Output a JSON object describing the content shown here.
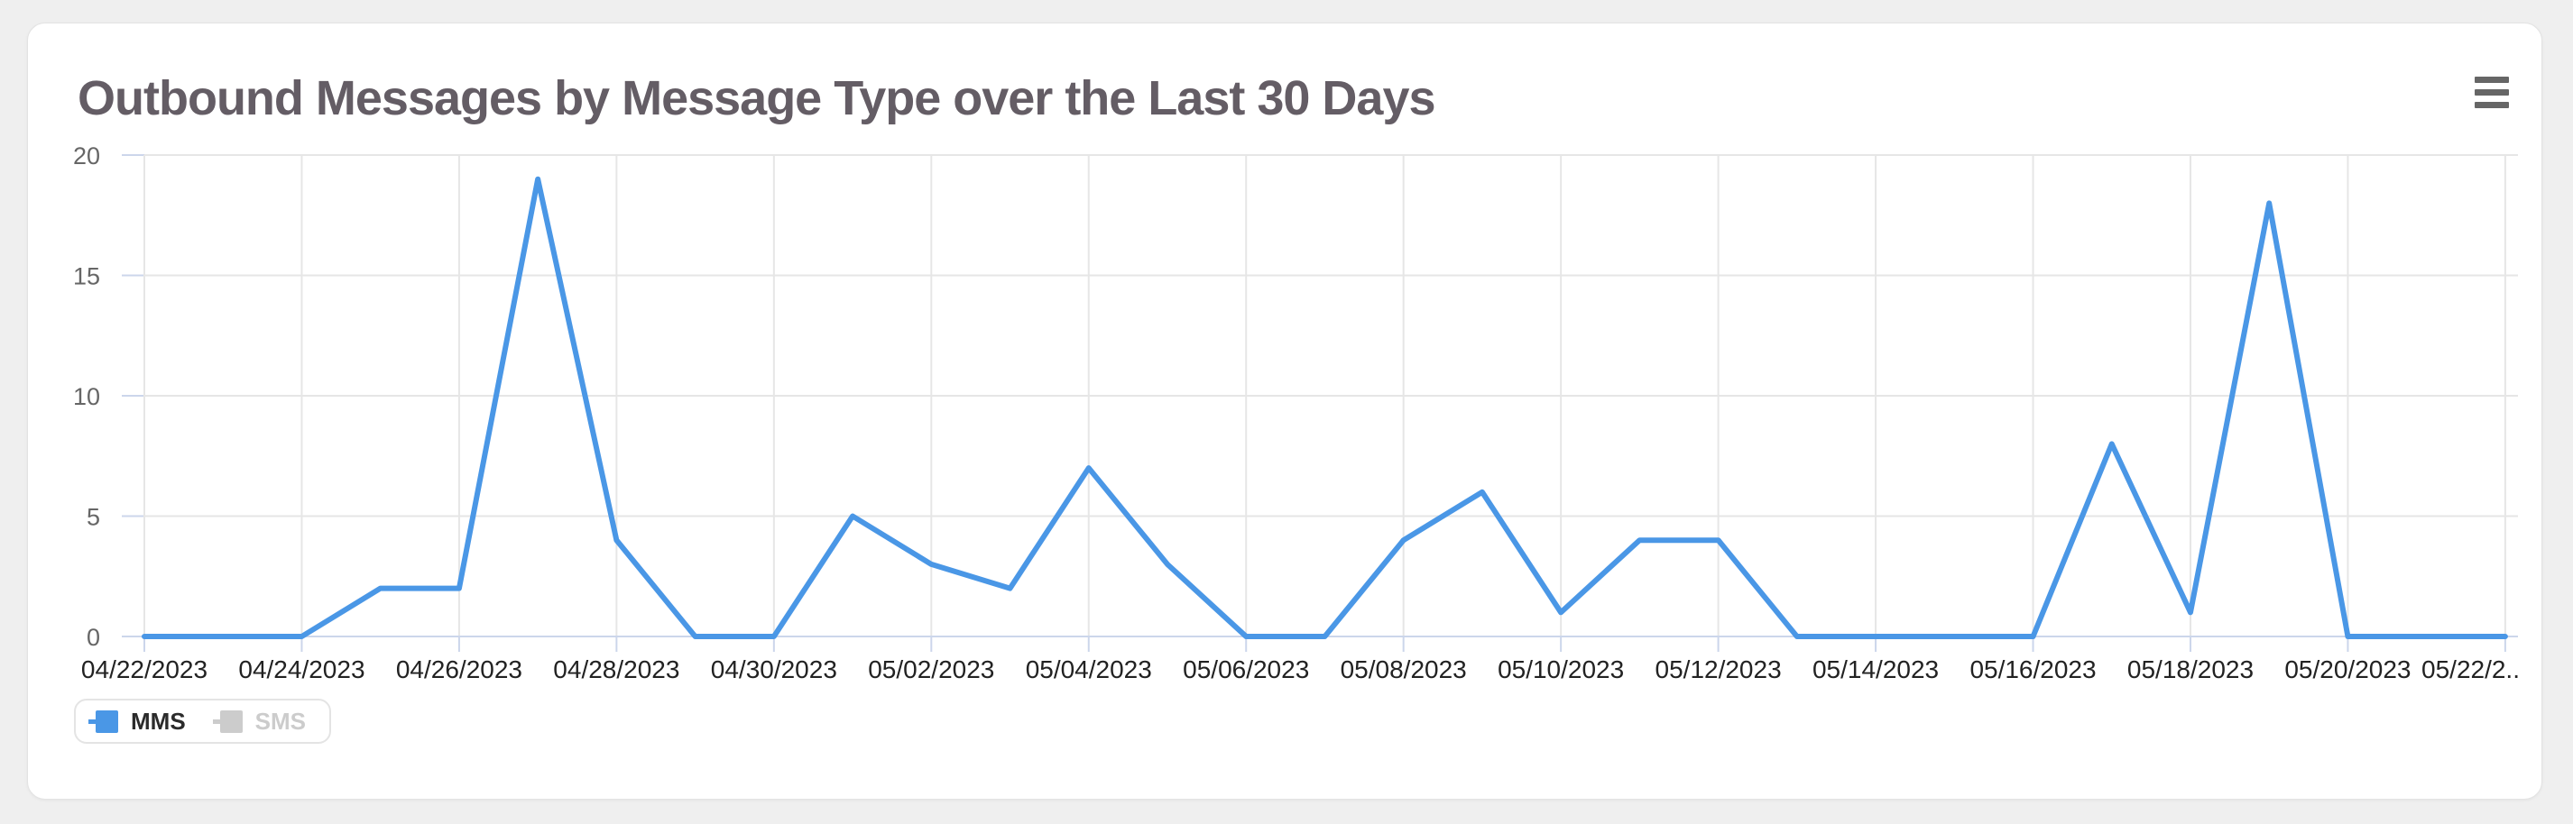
{
  "header": {
    "title": "Outbound Messages by Message Type over the Last 30 Days",
    "title_color": "#645d65",
    "menu_icon": "hamburger-icon",
    "menu_color": "#666666"
  },
  "legend": {
    "items": [
      {
        "label": "MMS",
        "swatch_color": "#4a97e6",
        "text_color": "#2b2b2b",
        "active": true
      },
      {
        "label": "SMS",
        "swatch_color": "#cccccc",
        "text_color": "#cccccc",
        "active": false
      }
    ]
  },
  "chart_data": {
    "type": "line",
    "title": "Outbound Messages by Message Type over the Last 30 Days",
    "x": [
      "04/22/2023",
      "04/23/2023",
      "04/24/2023",
      "04/25/2023",
      "04/26/2023",
      "04/27/2023",
      "04/28/2023",
      "04/29/2023",
      "04/30/2023",
      "05/01/2023",
      "05/02/2023",
      "05/03/2023",
      "05/04/2023",
      "05/05/2023",
      "05/06/2023",
      "05/07/2023",
      "05/08/2023",
      "05/09/2023",
      "05/10/2023",
      "05/11/2023",
      "05/12/2023",
      "05/13/2023",
      "05/14/2023",
      "05/15/2023",
      "05/16/2023",
      "05/17/2023",
      "05/18/2023",
      "05/19/2023",
      "05/20/2023",
      "05/21/2023",
      "05/22/2023"
    ],
    "series": [
      {
        "name": "MMS",
        "color": "#4a97e6",
        "visible": true,
        "values": [
          0,
          0,
          0,
          2,
          2,
          19,
          4,
          0,
          0,
          5,
          3,
          2,
          7,
          3,
          0,
          0,
          4,
          6,
          1,
          4,
          4,
          0,
          0,
          0,
          0,
          8,
          1,
          18,
          0,
          0,
          0
        ]
      },
      {
        "name": "SMS",
        "color": "#cccccc",
        "visible": false,
        "values": null
      }
    ],
    "ylim": [
      0,
      20
    ],
    "yticks": [
      0,
      5,
      10,
      15,
      20
    ],
    "xtick_every_days": 2,
    "xtick_labels": [
      "04/22/2023",
      "04/24/2023",
      "04/26/2023",
      "04/28/2023",
      "04/30/2023",
      "05/02/2023",
      "05/04/2023",
      "05/06/2023",
      "05/08/2023",
      "05/10/2023",
      "05/12/2023",
      "05/14/2023",
      "05/16/2023",
      "05/18/2023",
      "05/20/2023",
      "05/22/2.."
    ],
    "xlabel": "",
    "ylabel": "",
    "grid": true,
    "legend_position": "bottom-left",
    "colors": {
      "grid": "#e6e6e6",
      "axis": "#ccd6eb",
      "x_label_color": "#222222",
      "y_label_color": "#666666"
    }
  }
}
